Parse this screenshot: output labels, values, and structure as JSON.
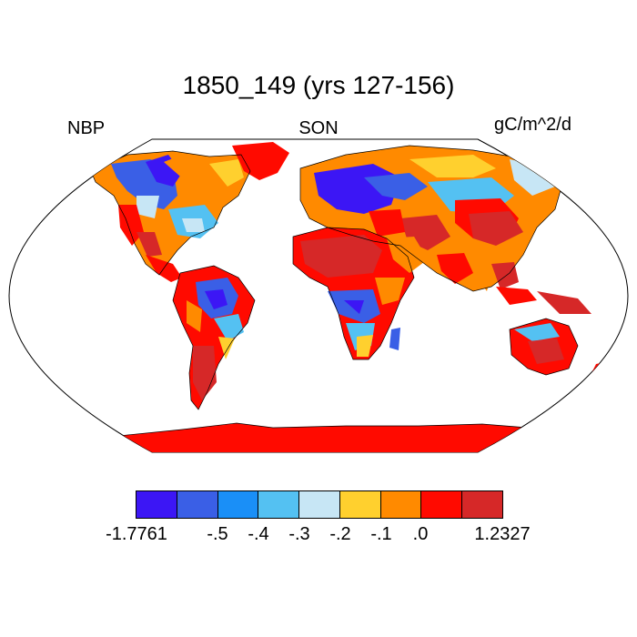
{
  "title": "1850_149 (yrs 127-156)",
  "left_label": "NBP",
  "center_label": "SON",
  "right_label": "gC/m^2/d",
  "colorbar": {
    "colors": [
      "#3c16f5",
      "#3a5fe6",
      "#1a8ff7",
      "#54c1f2",
      "#c7e6f5",
      "#ffd02e",
      "#ff8a00",
      "#ff0a00",
      "#d62828"
    ],
    "labels": [
      "-1.7761",
      "-.5",
      "-.4",
      "-.3",
      "-.2",
      "-.1",
      ".0",
      "1.2327"
    ]
  }
}
